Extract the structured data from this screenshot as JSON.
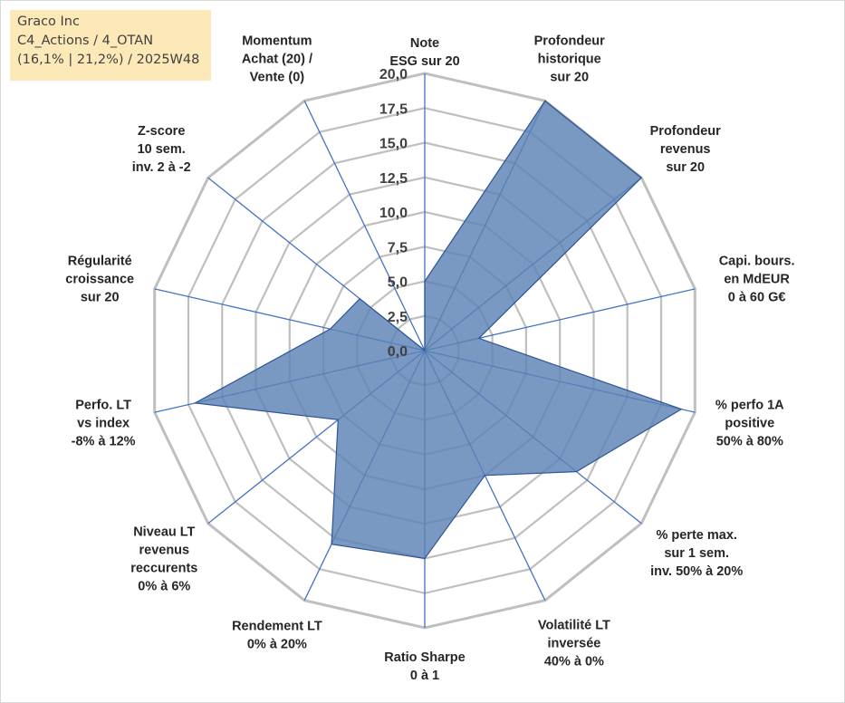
{
  "info": {
    "company": "Graco Inc",
    "portfolio": "C4_Actions / 4_OTAN",
    "stats": "(16,1% | 21,2%) / 2025W48"
  },
  "chart_data": {
    "type": "radar",
    "title": "",
    "rmin": 0,
    "rmax": 20,
    "tick_step": 2.5,
    "tick_labels": [
      "0,0",
      "2,5",
      "5,0",
      "7,5",
      "10,0",
      "12,5",
      "15,0",
      "17,5",
      "20,0"
    ],
    "categories": [
      [
        "Note",
        "ESG sur 20"
      ],
      [
        "Profondeur",
        "historique",
        "sur 20"
      ],
      [
        "Profondeur",
        "revenus",
        "sur 20"
      ],
      [
        "Capi. bours.",
        "en MdEUR",
        "0 à 60 G€"
      ],
      [
        "% perfo 1A",
        "positive",
        "50% à 80%"
      ],
      [
        "% perte max.",
        "sur 1 sem.",
        "inv. 50% à 20%"
      ],
      [
        "Volatilité LT",
        "inversée",
        "40% à 0%"
      ],
      [
        "Ratio Sharpe",
        "0 à 1"
      ],
      [
        "Rendement LT",
        "0% à 20%"
      ],
      [
        "Niveau LT",
        "revenus",
        "reccurents",
        "0% à 6%"
      ],
      [
        "Perfo. LT",
        "vs index",
        "-8% à 12%"
      ],
      [
        "Régularité",
        "croissance",
        "sur 20"
      ],
      [
        "Z-score",
        "10 sem.",
        "inv. 2 à -2"
      ],
      [
        "Momentum",
        "Achat (20) /",
        "Vente (0)"
      ]
    ],
    "series": [
      {
        "name": "Graco Inc",
        "color": "#5b82b5",
        "values": [
          5.0,
          20.0,
          20.0,
          4.0,
          19.0,
          14.0,
          10.0,
          15.0,
          15.5,
          8.0,
          17.0,
          7.0,
          6.0,
          0.0
        ]
      }
    ]
  }
}
